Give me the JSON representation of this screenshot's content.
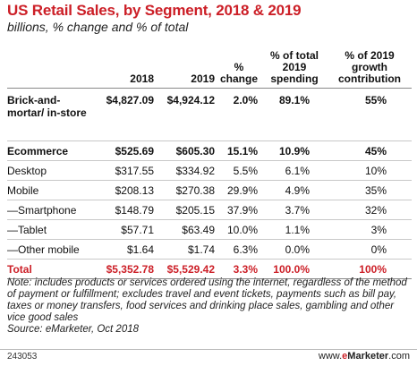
{
  "chart_data": {
    "type": "table",
    "title": "US Retail Sales, by Segment, 2018 & 2019",
    "subtitle": "billions, % change and % of total",
    "columns": [
      "2018",
      "2019",
      "% change",
      "% of total 2019 spending",
      "% of 2019 growth contribution"
    ],
    "rows": [
      {
        "label": "Brick-and-mortar/ in-store",
        "values": [
          "$4,827.09",
          "$4,924.12",
          "2.0%",
          "89.1%",
          "55%"
        ],
        "bold": true
      },
      {
        "label": "Ecommerce",
        "values": [
          "$525.69",
          "$605.30",
          "15.1%",
          "10.9%",
          "45%"
        ],
        "bold": true
      },
      {
        "label": "Desktop",
        "values": [
          "$317.55",
          "$334.92",
          "5.5%",
          "6.1%",
          "10%"
        ],
        "bold": false
      },
      {
        "label": "Mobile",
        "values": [
          "$208.13",
          "$270.38",
          "29.9%",
          "4.9%",
          "35%"
        ],
        "bold": false
      },
      {
        "label": "—Smartphone",
        "values": [
          "$148.79",
          "$205.15",
          "37.9%",
          "3.7%",
          "32%"
        ],
        "bold": false
      },
      {
        "label": "—Tablet",
        "values": [
          "$57.71",
          "$63.49",
          "10.0%",
          "1.1%",
          "3%"
        ],
        "bold": false
      },
      {
        "label": "—Other mobile",
        "values": [
          "$1.64",
          "$1.74",
          "6.3%",
          "0.0%",
          "0%"
        ],
        "bold": false
      },
      {
        "label": "Total",
        "values": [
          "$5,352.78",
          "$5,529.42",
          "3.3%",
          "100.0%",
          "100%"
        ],
        "bold": true
      }
    ],
    "note": "Note: includes products or services ordered using the internet, regardless of the method of payment or fulfillment; excludes travel and event tickets, payments such as bill pay, taxes or money transfers, food services and drinking place sales, gambling and other vice good sales",
    "source": "Source: eMarketer, Oct 2018"
  },
  "footer": {
    "chart_id": "243053",
    "brand_prefix": "www.",
    "brand_e": "e",
    "brand_name": "Marketer",
    "brand_suffix": ".com"
  },
  "colors": {
    "accent": "#cc1f27",
    "text": "#111111"
  }
}
